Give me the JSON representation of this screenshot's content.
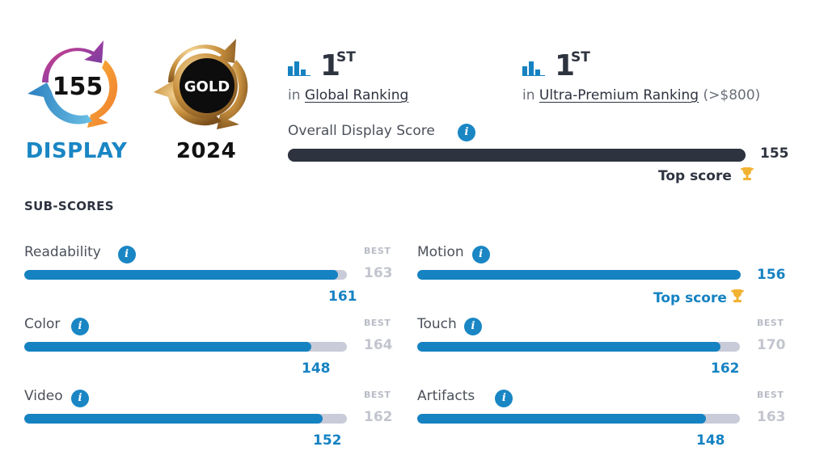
{
  "display_badge": {
    "score": "155",
    "caption": "DISPLAY",
    "caption_color": "#1a86c4"
  },
  "gold_badge": {
    "label": "GOLD",
    "year": "2024"
  },
  "rankings": [
    {
      "place": "1",
      "suffix": "ST",
      "prefix": "in",
      "link": "Global Ranking",
      "extra": ""
    },
    {
      "place": "1",
      "suffix": "ST",
      "prefix": "in",
      "link": "Ultra-Premium Ranking",
      "extra": "(>$800)"
    }
  ],
  "overall": {
    "label": "Overall Display Score",
    "value": 155,
    "value_text": "155",
    "fraction": 1.0,
    "top_score": "Top score"
  },
  "subscores": {
    "title": "SUB-SCORES",
    "best_label": "BEST",
    "items": [
      {
        "name": "Readability",
        "value": 161,
        "value_text": "161",
        "best": 163,
        "best_text": "163",
        "top": false
      },
      {
        "name": "Motion",
        "value": 156,
        "value_text": "156",
        "best": 156,
        "best_text": "",
        "top": true,
        "top_label": "Top score"
      },
      {
        "name": "Color",
        "value": 148,
        "value_text": "148",
        "best": 164,
        "best_text": "164",
        "top": false
      },
      {
        "name": "Touch",
        "value": 162,
        "value_text": "162",
        "best": 170,
        "best_text": "170",
        "top": false
      },
      {
        "name": "Video",
        "value": 152,
        "value_text": "152",
        "best": 162,
        "best_text": "162",
        "top": false
      },
      {
        "name": "Artifacts",
        "value": 148,
        "value_text": "148",
        "best": 163,
        "best_text": "163",
        "top": false
      }
    ]
  },
  "colors": {
    "accent": "#1582c2",
    "track": "#c9cbd8",
    "dark": "#2e3340",
    "trophy": "#f2b233",
    "top_text_dark": "#2e3340",
    "top_text_blue": "#1582c2"
  }
}
